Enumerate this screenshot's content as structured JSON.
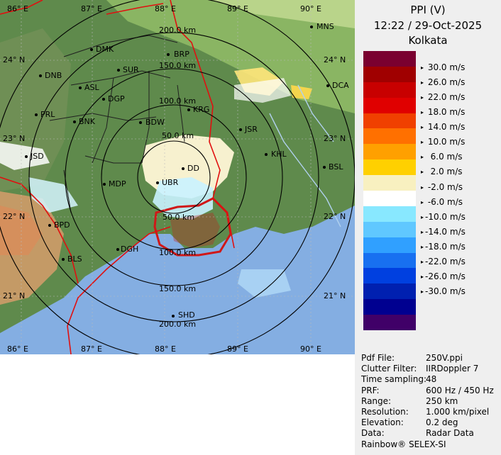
{
  "header": {
    "product": "PPI (V)",
    "datetime": "12:22 / 29-Oct-2025",
    "station": "Kolkata"
  },
  "legend": {
    "labels": [
      "30.0 m/s",
      "26.0 m/s",
      "22.0 m/s",
      "18.0 m/s",
      "14.0 m/s",
      "10.0 m/s",
      "6.0 m/s",
      "2.0 m/s",
      "-2.0 m/s",
      "-6.0 m/s",
      "-10.0 m/s",
      "-14.0 m/s",
      "-18.0 m/s",
      "-22.0 m/s",
      "-26.0 m/s",
      "-30.0 m/s"
    ],
    "label_text": [
      " 30.0 m/s",
      " 26.0 m/s",
      " 22.0 m/s",
      " 18.0 m/s",
      " 14.0 m/s",
      " 10.0 m/s",
      "  6.0 m/s",
      "  2.0 m/s",
      " -2.0 m/s",
      " -6.0 m/s",
      "-10.0 m/s",
      "-14.0 m/s",
      "-18.0 m/s",
      "-22.0 m/s",
      "-26.0 m/s",
      "-30.0 m/s"
    ],
    "colors": [
      "#7a0030",
      "#a00000",
      "#c80000",
      "#e00000",
      "#f04000",
      "#ff7000",
      "#ffa000",
      "#ffd000",
      "#f8f0c0",
      "#ffffff",
      "#88e8ff",
      "#60c8ff",
      "#30a0ff",
      "#1870f0",
      "#0040e0",
      "#0020b0",
      "#000090",
      "#400068"
    ]
  },
  "info": [
    {
      "key": "Pdf File:",
      "value": "250V.ppi"
    },
    {
      "key": "Clutter Filter:",
      "value": "IIRDoppler 7"
    },
    {
      "key": "Time sampling:",
      "value": "48"
    },
    {
      "key": "PRF:",
      "value": "600 Hz / 450 Hz"
    },
    {
      "key": "Range:",
      "value": "250 km"
    },
    {
      "key": "Resolution:",
      "value": "1.000 km/pixel"
    },
    {
      "key": "Elevation:",
      "value": "0.2 deg"
    },
    {
      "key": "Data:",
      "value": "Radar Data"
    }
  ],
  "footer": "Rainbow® SELEX-SI",
  "map": {
    "lon_labels": [
      "86° E",
      "87° E",
      "88° E",
      "89° E",
      "90° E"
    ],
    "lat_labels": [
      "24° N",
      "23° N",
      "22° N",
      "21° N"
    ],
    "range_labels": [
      "50.0 km",
      "100.0 km",
      "150.0 km",
      "200.0 km"
    ],
    "range_labels_south": [
      "50.0 km",
      "100.0 km",
      "150.0 km",
      "200.0 km"
    ],
    "stations": [
      "MNS",
      "DMK",
      "BRP",
      "DNB",
      "SUR",
      "ASL",
      "DGP",
      "DCA",
      "KRG",
      "PRL",
      "BNK",
      "BDW",
      "JSR",
      "KHL",
      "JSD",
      "DD",
      "BSL",
      "MDP",
      "UBR",
      "BPD",
      "DGH",
      "BLS",
      "SHD"
    ]
  }
}
